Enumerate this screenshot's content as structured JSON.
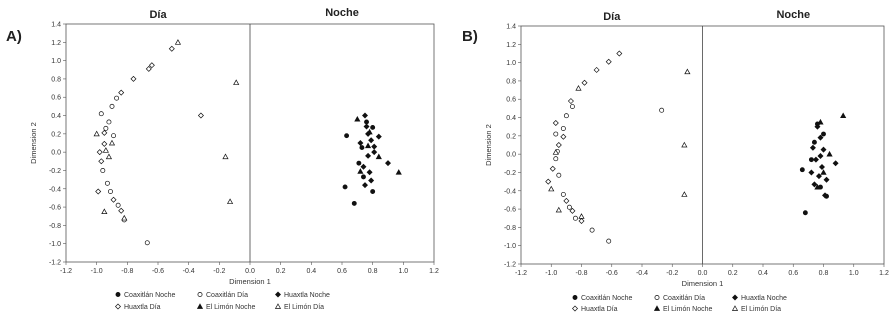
{
  "panels": [
    {
      "letter": "A)"
    },
    {
      "letter": "B)"
    }
  ],
  "chart_data": [
    {
      "type": "scatter",
      "panel": "A)",
      "xlabel": "Dimension 1",
      "ylabel": "Dimension 2",
      "xlim": [
        -1.2,
        1.2
      ],
      "ylim": [
        -1.2,
        1.4
      ],
      "xticks": [
        "-1.2",
        "-1.0",
        "-0.8",
        "-0.6",
        "-0.4",
        "-0.2",
        "0.0",
        "0.2",
        "0.4",
        "0.6",
        "0.8",
        "1.0",
        "1.2"
      ],
      "yticks": [
        "-1.2",
        "-1.0",
        "-0.8",
        "-0.6",
        "-0.4",
        "-0.2",
        "0.0",
        "0.2",
        "0.4",
        "0.6",
        "0.8",
        "1.0",
        "1.2",
        "1.4"
      ],
      "grid": false,
      "region_labels": [
        "Día",
        "Noche"
      ],
      "legend": [
        "Coaxitlán Noche",
        "Coaxitlán Día",
        "Huaxtla Noche",
        "Huaxtla Día",
        "El Limón Noche",
        "El Limón Día"
      ],
      "series": [
        {
          "name": "Coaxitlán Noche",
          "marker": "filled-circle",
          "points": [
            [
              0.63,
              0.18
            ],
            [
              0.62,
              -0.38
            ],
            [
              0.68,
              -0.56
            ],
            [
              0.76,
              0.33
            ],
            [
              0.8,
              0.27
            ],
            [
              0.73,
              0.05
            ],
            [
              0.74,
              -0.27
            ],
            [
              0.8,
              -0.43
            ],
            [
              0.71,
              -0.12
            ]
          ]
        },
        {
          "name": "Coaxitlán Día",
          "marker": "open-circle",
          "points": [
            [
              -0.97,
              0.42
            ],
            [
              -0.92,
              0.33
            ],
            [
              -0.9,
              0.5
            ],
            [
              -0.87,
              0.59
            ],
            [
              -0.96,
              -0.2
            ],
            [
              -0.93,
              -0.34
            ],
            [
              -0.91,
              -0.43
            ],
            [
              -0.86,
              -0.58
            ],
            [
              -0.82,
              -0.74
            ],
            [
              -0.67,
              -0.99
            ],
            [
              -0.94,
              0.26
            ],
            [
              -0.89,
              0.18
            ]
          ]
        },
        {
          "name": "Huaxtla Noche",
          "marker": "filled-diamond",
          "points": [
            [
              0.75,
              0.4
            ],
            [
              0.77,
              0.2
            ],
            [
              0.79,
              0.13
            ],
            [
              0.81,
              0.06
            ],
            [
              0.77,
              -0.04
            ],
            [
              0.74,
              -0.16
            ],
            [
              0.78,
              -0.22
            ],
            [
              0.81,
              0.0
            ],
            [
              0.72,
              0.1
            ],
            [
              0.76,
              0.28
            ],
            [
              0.79,
              -0.31
            ],
            [
              0.9,
              -0.12
            ],
            [
              0.84,
              0.17
            ],
            [
              0.75,
              -0.36
            ]
          ]
        },
        {
          "name": "Huaxtla Día",
          "marker": "open-diamond",
          "points": [
            [
              -0.98,
              0.0
            ],
            [
              -0.95,
              0.09
            ],
            [
              -0.97,
              -0.1
            ],
            [
              -0.99,
              -0.43
            ],
            [
              -0.84,
              0.65
            ],
            [
              -0.76,
              0.8
            ],
            [
              -0.64,
              0.95
            ],
            [
              -0.51,
              1.13
            ],
            [
              -0.66,
              0.91
            ],
            [
              -0.32,
              0.4
            ],
            [
              -0.89,
              -0.52
            ],
            [
              -0.84,
              -0.64
            ],
            [
              -0.95,
              0.21
            ]
          ]
        },
        {
          "name": "El Limón Noche",
          "marker": "filled-triangle",
          "points": [
            [
              0.97,
              -0.22
            ],
            [
              0.72,
              -0.21
            ],
            [
              0.78,
              0.22
            ],
            [
              0.84,
              -0.05
            ],
            [
              0.7,
              0.36
            ],
            [
              0.77,
              0.07
            ]
          ]
        },
        {
          "name": "El Limón Día",
          "marker": "open-triangle",
          "points": [
            [
              -1.0,
              0.2
            ],
            [
              -0.95,
              -0.65
            ],
            [
              -0.47,
              1.2
            ],
            [
              -0.09,
              0.76
            ],
            [
              -0.16,
              -0.05
            ],
            [
              -0.13,
              -0.54
            ],
            [
              -0.94,
              0.02
            ],
            [
              -0.92,
              -0.05
            ],
            [
              -0.82,
              -0.72
            ],
            [
              -0.9,
              0.1
            ]
          ]
        }
      ]
    },
    {
      "type": "scatter",
      "panel": "B)",
      "xlabel": "Dimension 1",
      "ylabel": "Dimension 2",
      "xlim": [
        -1.2,
        1.2
      ],
      "ylim": [
        -1.2,
        1.4
      ],
      "xticks": [
        "-1.2",
        "-1.0",
        "-0.8",
        "-0.6",
        "-0.4",
        "-0.2",
        "0.0",
        "0.2",
        "0.4",
        "0.6",
        "0.8",
        "1.0",
        "1.2"
      ],
      "yticks": [
        "-1.2",
        "-1.0",
        "-0.8",
        "-0.6",
        "-0.4",
        "-0.2",
        "0.0",
        "0.2",
        "0.4",
        "0.6",
        "0.8",
        "1.0",
        "1.2",
        "1.4"
      ],
      "grid": false,
      "region_labels": [
        "Día",
        "Noche"
      ],
      "legend": [
        "Coaxitlán Noche",
        "Coaxitlán Día",
        "Huaxtla Noche",
        "Huaxtla Día",
        "El Limón Noche",
        "El Limón Día"
      ],
      "series": [
        {
          "name": "Coaxitlán Noche",
          "marker": "filled-circle",
          "points": [
            [
              0.66,
              -0.17
            ],
            [
              0.68,
              -0.64
            ],
            [
              0.76,
              0.33
            ],
            [
              0.8,
              0.22
            ],
            [
              0.72,
              -0.06
            ],
            [
              0.78,
              -0.36
            ],
            [
              0.82,
              -0.46
            ],
            [
              0.74,
              0.13
            ]
          ]
        },
        {
          "name": "Coaxitlán Día",
          "marker": "open-circle",
          "points": [
            [
              -0.97,
              0.22
            ],
            [
              -0.96,
              0.03
            ],
            [
              -0.95,
              -0.23
            ],
            [
              -0.92,
              -0.44
            ],
            [
              -0.88,
              -0.58
            ],
            [
              -0.84,
              -0.7
            ],
            [
              -0.73,
              -0.83
            ],
            [
              -0.62,
              -0.95
            ],
            [
              -0.27,
              0.48
            ],
            [
              -0.92,
              0.28
            ],
            [
              -0.9,
              0.42
            ],
            [
              -0.86,
              0.52
            ],
            [
              -0.97,
              -0.05
            ]
          ]
        },
        {
          "name": "Huaxtla Noche",
          "marker": "filled-diamond",
          "points": [
            [
              0.76,
              0.3
            ],
            [
              0.78,
              0.18
            ],
            [
              0.8,
              0.05
            ],
            [
              0.75,
              -0.06
            ],
            [
              0.79,
              -0.14
            ],
            [
              0.77,
              -0.24
            ],
            [
              0.74,
              -0.33
            ],
            [
              0.82,
              -0.28
            ],
            [
              0.73,
              0.07
            ],
            [
              0.88,
              -0.1
            ],
            [
              0.81,
              -0.45
            ],
            [
              0.72,
              -0.2
            ],
            [
              0.78,
              -0.02
            ]
          ]
        },
        {
          "name": "Huaxtla Día",
          "marker": "open-diamond",
          "points": [
            [
              -1.02,
              -0.3
            ],
            [
              -0.99,
              -0.16
            ],
            [
              -0.95,
              0.1
            ],
            [
              -0.92,
              0.19
            ],
            [
              -0.87,
              0.58
            ],
            [
              -0.78,
              0.78
            ],
            [
              -0.7,
              0.92
            ],
            [
              -0.62,
              1.01
            ],
            [
              -0.55,
              1.1
            ],
            [
              -0.9,
              -0.51
            ],
            [
              -0.86,
              -0.62
            ],
            [
              -0.8,
              -0.73
            ],
            [
              -0.97,
              0.34
            ]
          ]
        },
        {
          "name": "El Limón Noche",
          "marker": "filled-triangle",
          "points": [
            [
              0.93,
              0.42
            ],
            [
              0.78,
              0.35
            ],
            [
              0.76,
              -0.36
            ],
            [
              0.8,
              -0.2
            ],
            [
              0.84,
              0.0
            ]
          ]
        },
        {
          "name": "El Limón Día",
          "marker": "open-triangle",
          "points": [
            [
              -0.1,
              0.9
            ],
            [
              -0.12,
              0.1
            ],
            [
              -0.12,
              -0.44
            ],
            [
              -1.0,
              -0.38
            ],
            [
              -0.97,
              0.02
            ],
            [
              -0.95,
              -0.61
            ],
            [
              -0.8,
              -0.68
            ],
            [
              -0.82,
              0.72
            ]
          ]
        }
      ]
    }
  ]
}
